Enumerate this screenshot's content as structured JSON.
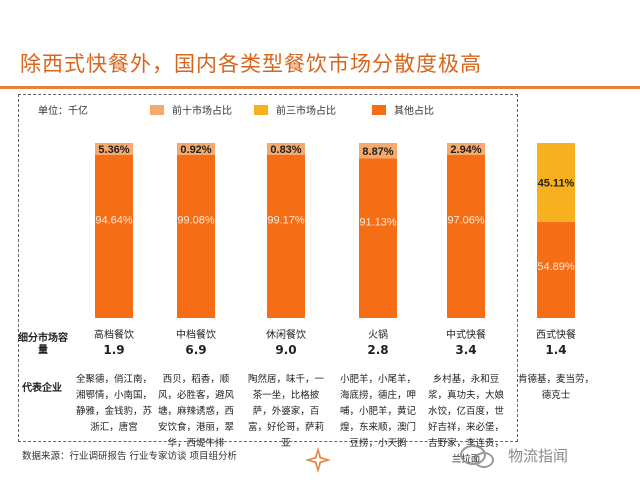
{
  "title": "除西式快餐外，国内各类型餐饮市场分散度极高",
  "unit_label": "单位：千亿",
  "legend": [
    {
      "label": "前十市场占比",
      "color": "#f5a96a"
    },
    {
      "label": "前三市场占比",
      "color": "#f7b11e"
    },
    {
      "label": "其他占比",
      "color": "#f56d14"
    }
  ],
  "row_labels": {
    "market_size": "细分市场容量",
    "brands": "代表企业"
  },
  "chart_data": {
    "type": "bar",
    "stacked": true,
    "percent": true,
    "categories": [
      "高档餐饮",
      "中档餐饮",
      "休闲餐饮",
      "火锅",
      "中式快餐",
      "西式快餐"
    ],
    "series": [
      {
        "name": "前十市场占比",
        "values": [
          5.36,
          0.92,
          0.83,
          8.87,
          2.94,
          null
        ]
      },
      {
        "name": "前三市场占比",
        "values": [
          null,
          null,
          null,
          null,
          null,
          45.11
        ]
      },
      {
        "name": "其他占比",
        "values": [
          94.64,
          99.08,
          99.17,
          91.13,
          97.06,
          54.89
        ]
      }
    ],
    "data_labels": {
      "top": [
        "5.36%",
        "0.92%",
        "0.83%",
        "8.87%",
        "2.94%",
        "45.11%"
      ],
      "other": [
        "94.64%",
        "99.08%",
        "99.17%",
        "91.13%",
        "97.06%",
        "54.89%"
      ]
    },
    "market_size": [
      "1.9",
      "6.9",
      "9.0",
      "2.8",
      "3.4",
      "1.4"
    ],
    "brands": [
      "全聚德，俏江南，湘鄂情，小南国，静雅，金钱豹，苏浙汇，唐宫",
      "西贝，稻香，顺风，必胜客，避风塘，麻辣诱惑，西安饮食，港丽，翠华，西堤牛排",
      "陶然居，味千，一茶一坐，比格披萨，外婆家，百富，好伦哥，萨莉亚",
      "小肥羊，小尾羊，海底捞，德庄，呷哺，小肥羊，黄记煌，东来顺，澳门豆捞，小天鹅",
      "乡村基，永和豆浆，真功夫，大娘水饺，亿百度，世好吉祥，来必堡，吉野家，李连贵，兰拉面",
      "肯德基，麦当劳，德克士"
    ],
    "ylim": [
      0,
      100
    ]
  },
  "source": "数据来源：行业调研报告 行业专家访谈 项目组分析",
  "watermark": "物流指闻"
}
